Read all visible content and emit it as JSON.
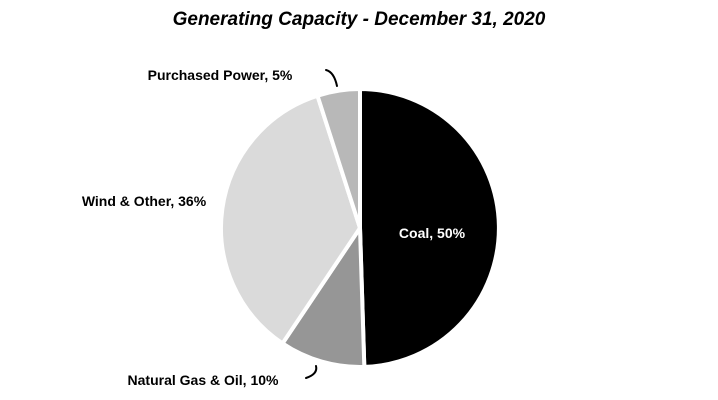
{
  "chart_data": {
    "type": "pie",
    "title": "Generating Capacity - December 31, 2020",
    "slices": [
      {
        "name": "Coal",
        "value": 50,
        "label": "Coal, 50%",
        "color": "#000000"
      },
      {
        "name": "Natural Gas & Oil",
        "value": 10,
        "label": "Natural Gas & Oil, 10%",
        "color": "#969696"
      },
      {
        "name": "Wind & Other",
        "value": 36,
        "label": "Wind & Other, 36%",
        "color": "#dadada"
      },
      {
        "name": "Purchased Power",
        "value": 5,
        "label": "Purchased Power, 5%",
        "color": "#b8b8b8"
      }
    ],
    "legend": "none"
  }
}
